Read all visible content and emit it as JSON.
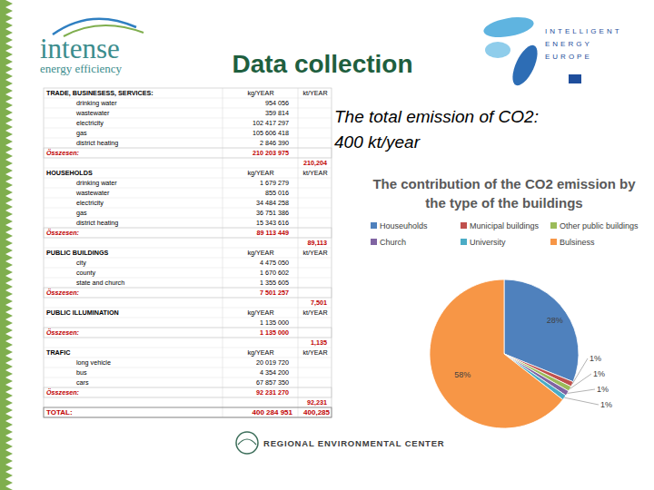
{
  "header": {
    "title": "Data collection",
    "logo_left": [
      "intense",
      "energy efficiency"
    ],
    "logo_right": [
      "INTELLIGENT",
      "ENERGY",
      "EUROPE"
    ]
  },
  "text": "The total emission of CO2: 400 kt/year",
  "table": {
    "sections": [
      {
        "title": "TRADE, BUSINESESS, SERVICES:",
        "units": [
          "kg/YEAR",
          "kt/YEAR"
        ],
        "rows": [
          [
            "drinking water",
            "954 056"
          ],
          [
            "wastewater",
            "359 814"
          ],
          [
            "electricity",
            "102 417 297"
          ],
          [
            "gas",
            "105 606 418"
          ],
          [
            "district heating",
            "2 846 390"
          ]
        ],
        "total": [
          "Összesen:",
          "210 203 975",
          "210,204"
        ]
      },
      {
        "title": "HOUSEHOLDS",
        "units": [
          "kg/YEAR",
          "kt/YEAR"
        ],
        "rows": [
          [
            "drinking water",
            "1 679 279"
          ],
          [
            "wastewater",
            "855 016"
          ],
          [
            "electricity",
            "34 484 258"
          ],
          [
            "gas",
            "36 751 386"
          ],
          [
            "district heating",
            "15 343 616"
          ]
        ],
        "total": [
          "Összesen:",
          "89 113 449",
          "89,113"
        ]
      },
      {
        "title": "PUBLIC BUILDINGS",
        "units": [
          "kg/YEAR",
          "kt/YEAR"
        ],
        "rows": [
          [
            "city",
            "4 475 050"
          ],
          [
            "county",
            "1 670 602"
          ],
          [
            "state and church",
            "1 355 605"
          ]
        ],
        "total": [
          "Összesen:",
          "7 501 257",
          "7,501"
        ]
      },
      {
        "title": "PUBLIC ILLUMINATION",
        "units": [
          "kg/YEAR",
          "kt/YEAR"
        ],
        "rows": [
          [
            null,
            "1 135 000"
          ]
        ],
        "total": [
          "Összesen:",
          "1 135 000",
          "1,135"
        ]
      },
      {
        "title": "TRAFIC",
        "units": [
          "kg/YEAR",
          "kt/YEAR"
        ],
        "rows": [
          [
            "long vehicle",
            "20 019 720"
          ],
          [
            "bus",
            "4 354 200"
          ],
          [
            "cars",
            "67 857 350"
          ]
        ],
        "total": [
          "Összesen:",
          "92 231 270",
          "92,231"
        ]
      }
    ],
    "grand_total": [
      "TOTAL:",
      "400 284 951",
      "400,285"
    ]
  },
  "chart_data": {
    "type": "pie",
    "title": "The contribution of the CO2 emission by the type of the buildings",
    "categories": [
      "Houseuholds",
      "Municipal buildings",
      "Other public buildings",
      "Church",
      "University",
      "Bulsiness"
    ],
    "values": [
      28,
      1,
      1,
      1,
      1,
      58
    ],
    "value_labels": [
      "28%",
      "1%",
      "1%",
      "1%",
      "1%",
      "58%"
    ],
    "colors": [
      "#4f81bd",
      "#c0504d",
      "#9bbb59",
      "#8064a2",
      "#4bacc6",
      "#f79646"
    ],
    "data_labels": true,
    "legend": "top"
  },
  "footer": "REGIONAL ENVIRONMENTAL CENTER"
}
